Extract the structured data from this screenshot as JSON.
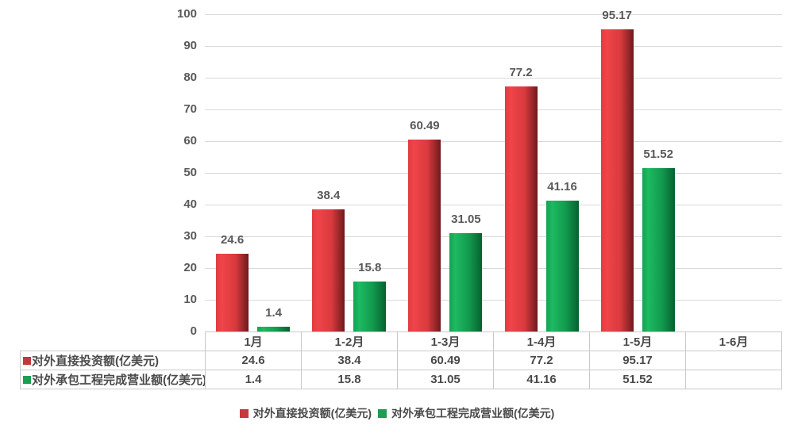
{
  "chart_data": {
    "type": "bar",
    "categories": [
      "1月",
      "1-2月",
      "1-3月",
      "1-4月",
      "1-5月",
      "1-6月"
    ],
    "series": [
      {
        "name": "对外直接投资额(亿美元)",
        "values": [
          24.6,
          38.4,
          60.49,
          77.2,
          95.17,
          null
        ],
        "labels": [
          "24.6",
          "38.4",
          "60.49",
          "77.2",
          "95.17",
          ""
        ],
        "gradient": [
          "#df3c41",
          "#f04449",
          "#d93a3e",
          "#6e1a1c"
        ]
      },
      {
        "name": "对外承包工程完成营业额(亿美元)",
        "values": [
          1.4,
          15.8,
          31.05,
          41.16,
          51.52,
          null
        ],
        "labels": [
          "1.4",
          "15.8",
          "31.05",
          "41.16",
          "51.52",
          ""
        ],
        "gradient": [
          "#14a251",
          "#1dba61",
          "#129a4e",
          "#06612f"
        ]
      }
    ],
    "ylim": [
      0,
      100
    ],
    "yticks": [
      0,
      10,
      20,
      30,
      40,
      50,
      60,
      70,
      80,
      90,
      100
    ],
    "grid": true,
    "gridline_color": "#d9d9d9",
    "legend_position": "bottom"
  },
  "table": {
    "columns": [
      "1月",
      "1-2月",
      "1-3月",
      "1-4月",
      "1-5月",
      "1-6月"
    ],
    "rows": [
      {
        "label": "对外直接投资额(亿美元)",
        "marker_color": "#c0393d",
        "values": [
          "24.6",
          "38.4",
          "60.49",
          "77.2",
          "95.17",
          ""
        ]
      },
      {
        "label": "对外承包工程完成营业额(亿美元)",
        "marker_color": "#1e9e51",
        "values": [
          "1.4",
          "15.8",
          "31.05",
          "41.16",
          "51.52",
          ""
        ]
      }
    ]
  },
  "legend": {
    "items": [
      {
        "label": "对外直接投资额(亿美元)",
        "color": "#c8383c"
      },
      {
        "label": "对外承包工程完成营业额(亿美元)",
        "color": "#1e9e51"
      }
    ]
  }
}
